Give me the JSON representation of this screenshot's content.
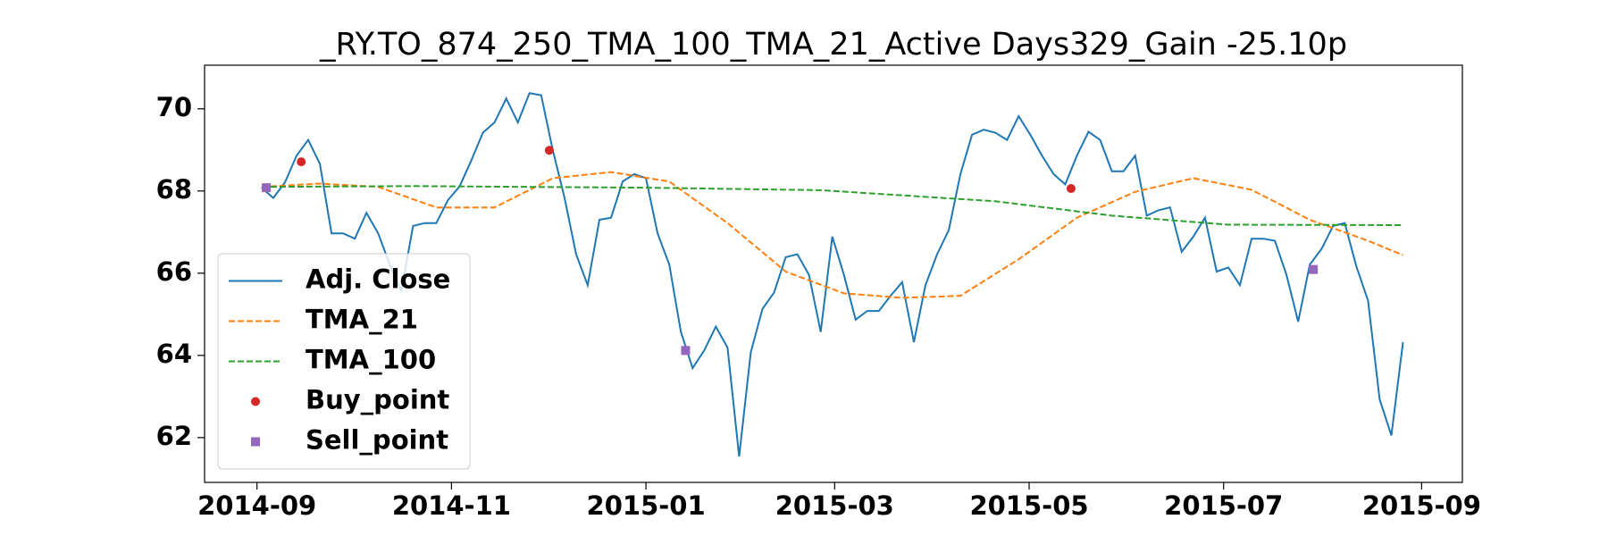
{
  "chart_data": {
    "type": "line",
    "title": "_RY.TO_874_250_TMA_100_TMA_21_Active Days329_Gain -25.10p",
    "xlim": [
      2014.621,
      2015.701
    ],
    "ylim": [
      60.91,
      71.06
    ],
    "xticks": [
      {
        "value": 2014.666,
        "label": "2014-09"
      },
      {
        "value": 2014.833,
        "label": "2014-11"
      },
      {
        "value": 2015.0,
        "label": "2015-01"
      },
      {
        "value": 2015.162,
        "label": "2015-03"
      },
      {
        "value": 2015.329,
        "label": "2015-05"
      },
      {
        "value": 2015.496,
        "label": "2015-07"
      },
      {
        "value": 2015.666,
        "label": "2015-09"
      }
    ],
    "yticks": [
      62,
      64,
      66,
      68,
      70
    ],
    "grid": false,
    "legend": "lower left",
    "series": [
      {
        "name": "Adj. Close",
        "color": "#1f77b4",
        "linestyle": "solid",
        "marker": "none",
        "x": [
          2014.67,
          2014.68,
          2014.69,
          2014.7,
          2014.71,
          2014.72,
          2014.73,
          2014.74,
          2014.75,
          2014.76,
          2014.77,
          2014.78,
          2014.79,
          2014.8,
          2014.81,
          2014.82,
          2014.83,
          2014.84,
          2014.85,
          2014.86,
          2014.87,
          2014.88,
          2014.89,
          2014.9,
          2014.91,
          2014.92,
          2014.93,
          2014.94,
          2014.95,
          2014.96,
          2014.97,
          2014.98,
          2014.99,
          2015.0,
          2015.01,
          2015.02,
          2015.03,
          2015.04,
          2015.05,
          2015.06,
          2015.07,
          2015.08,
          2015.09,
          2015.1,
          2015.11,
          2015.12,
          2015.13,
          2015.14,
          2015.15,
          2015.16,
          2015.17,
          2015.18,
          2015.19,
          2015.2,
          2015.21,
          2015.22,
          2015.23,
          2015.24,
          2015.25,
          2015.26,
          2015.27,
          2015.28,
          2015.29,
          2015.3,
          2015.31,
          2015.32,
          2015.33,
          2015.34,
          2015.35,
          2015.36,
          2015.37,
          2015.38,
          2015.39,
          2015.4,
          2015.41,
          2015.42,
          2015.43,
          2015.44,
          2015.45,
          2015.46,
          2015.47,
          2015.48,
          2015.49,
          2015.5,
          2015.51,
          2015.52,
          2015.53,
          2015.54,
          2015.55,
          2015.56,
          2015.57,
          2015.58,
          2015.59,
          2015.6,
          2015.61,
          2015.62,
          2015.63,
          2015.64,
          2015.65
        ],
        "values": [
          68.08,
          67.83,
          68.21,
          68.86,
          69.24,
          68.66,
          66.97,
          66.97,
          66.84,
          67.47,
          66.97,
          66.21,
          65.58,
          67.15,
          67.22,
          67.22,
          67.78,
          68.11,
          68.74,
          69.42,
          69.67,
          70.25,
          69.67,
          70.38,
          70.33,
          68.99,
          67.85,
          66.46,
          65.71,
          67.3,
          67.35,
          68.23,
          68.41,
          68.31,
          66.97,
          66.21,
          64.57,
          63.69,
          64.12,
          64.7,
          64.19,
          61.54,
          64.07,
          65.13,
          65.53,
          66.39,
          66.46,
          65.96,
          64.57,
          66.89,
          65.96,
          64.87,
          65.08,
          65.08,
          65.45,
          65.78,
          64.32,
          65.71,
          66.46,
          67.05,
          68.41,
          69.37,
          69.49,
          69.42,
          69.24,
          69.82,
          69.37,
          68.86,
          68.41,
          68.16,
          68.86,
          69.44,
          69.24,
          68.48,
          68.48,
          68.86,
          67.4,
          67.53,
          67.6,
          66.52,
          66.89,
          67.35,
          66.04,
          66.14,
          65.71,
          66.84,
          66.84,
          66.79,
          65.96,
          64.82,
          66.21,
          66.59,
          67.15,
          67.22,
          66.16,
          65.33,
          62.93,
          62.05,
          64.32
        ]
      },
      {
        "name": "TMA_21",
        "color": "#ff7f0e",
        "linestyle": "dashed",
        "marker": "none",
        "x": [
          2014.67,
          2014.72,
          2014.77,
          2014.82,
          2014.87,
          2014.92,
          2014.97,
          2015.02,
          2015.07,
          2015.12,
          2015.17,
          2015.22,
          2015.27,
          2015.32,
          2015.37,
          2015.42,
          2015.47,
          2015.52,
          2015.57,
          2015.62,
          2015.65
        ],
        "values": [
          68.1,
          68.18,
          68.1,
          67.6,
          67.6,
          68.31,
          68.46,
          68.23,
          67.22,
          66.04,
          65.51,
          65.4,
          65.45,
          66.34,
          67.35,
          67.98,
          68.31,
          68.03,
          67.3,
          66.79,
          66.44
        ]
      },
      {
        "name": "TMA_100",
        "color": "#2ca02c",
        "linestyle": "dashed",
        "marker": "none",
        "x": [
          2014.67,
          2014.8,
          2015.0,
          2015.15,
          2015.3,
          2015.4,
          2015.5,
          2015.65
        ],
        "values": [
          68.1,
          68.12,
          68.08,
          68.02,
          67.75,
          67.4,
          67.18,
          67.17
        ]
      },
      {
        "name": "Buy_point",
        "color": "#d62728",
        "linestyle": "none",
        "marker": "circle",
        "x": [
          2014.704,
          2014.917,
          2015.365
        ],
        "values": [
          68.71,
          68.99,
          68.06
        ]
      },
      {
        "name": "Sell_point",
        "color": "#9467bd",
        "linestyle": "none",
        "marker": "square",
        "x": [
          2014.674,
          2015.034,
          2015.573
        ],
        "values": [
          68.08,
          64.12,
          66.09
        ]
      }
    ]
  }
}
